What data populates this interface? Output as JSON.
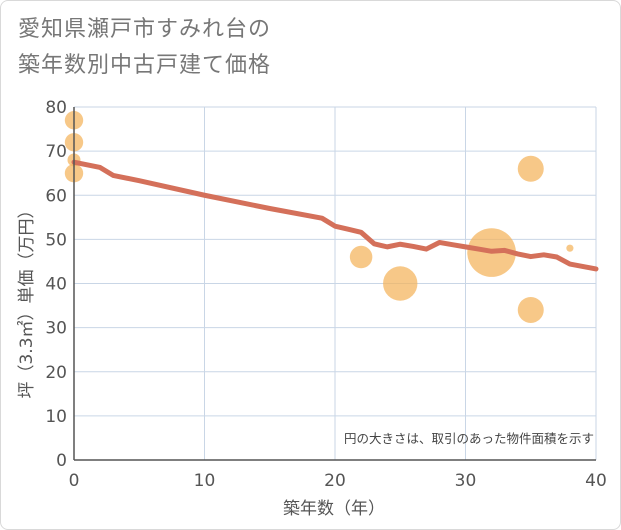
{
  "title": "愛知県瀬戸市すみれ台の\n築年数別中古戸建て価格",
  "chart_data": {
    "type": "scatter+line",
    "xlabel": "築年数（年）",
    "ylabel": "坪（3.3㎡）単価（万円）",
    "xlim": [
      0,
      40
    ],
    "ylim": [
      0,
      80
    ],
    "x_ticks": [
      "0",
      "10",
      "20",
      "30",
      "40"
    ],
    "y_ticks": [
      "0",
      "10",
      "20",
      "30",
      "40",
      "50",
      "60",
      "70",
      "80"
    ],
    "note": "円の大きさは、取引のあった物件面積を示す",
    "colors": {
      "line": "#d4705a",
      "bubble": "#f4b35a",
      "grid": "#c9d6e6",
      "axis": "#555555"
    },
    "trend_line": {
      "x": [
        0,
        2,
        3,
        5,
        10,
        15,
        19,
        20,
        21,
        22,
        23,
        24,
        25,
        26,
        27,
        28,
        29,
        30,
        31,
        32,
        33,
        34,
        35,
        36,
        37,
        38,
        40
      ],
      "y": [
        67.5,
        66.3,
        64.5,
        63.3,
        60.0,
        57.0,
        54.8,
        53.0,
        52.3,
        51.6,
        49.0,
        48.3,
        48.9,
        48.4,
        47.8,
        49.3,
        48.8,
        48.3,
        47.8,
        47.3,
        47.5,
        46.7,
        46.1,
        46.5,
        46.0,
        44.4,
        43.3
      ]
    },
    "bubbles": [
      {
        "x": 0,
        "y": 77,
        "size": 2
      },
      {
        "x": 0,
        "y": 72,
        "size": 2
      },
      {
        "x": 0,
        "y": 68,
        "size": 1
      },
      {
        "x": 0,
        "y": 65,
        "size": 2
      },
      {
        "x": 22,
        "y": 46,
        "size": 3
      },
      {
        "x": 25,
        "y": 40,
        "size": 7
      },
      {
        "x": 32,
        "y": 47,
        "size": 14
      },
      {
        "x": 35,
        "y": 66,
        "size": 4
      },
      {
        "x": 35,
        "y": 34,
        "size": 4
      },
      {
        "x": 38,
        "y": 48,
        "size": 0.3
      }
    ]
  }
}
